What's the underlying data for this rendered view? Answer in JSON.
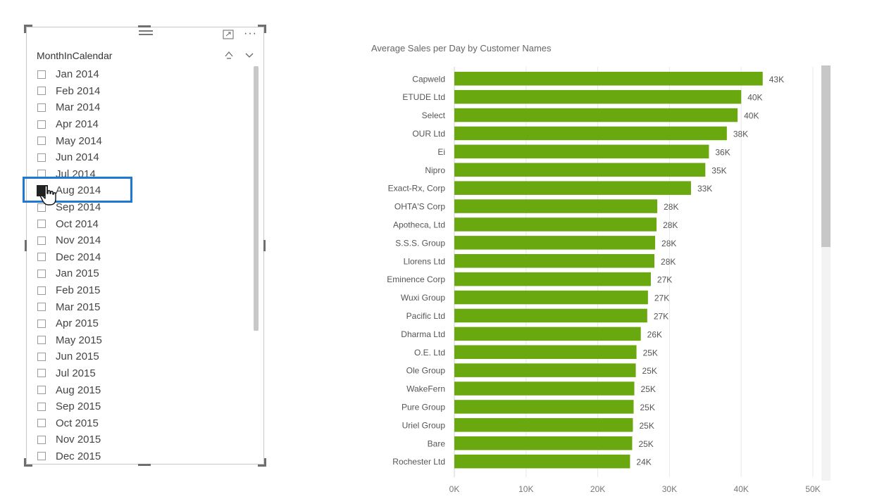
{
  "slicer": {
    "title": "MonthInCalendar",
    "icons": {
      "drag": "drag-handle-icon",
      "focus": "focus-mode-icon",
      "more": "more-options-icon",
      "clear": "eraser-icon",
      "collapse": "chevron-down-icon"
    },
    "more_label": "···",
    "items": [
      {
        "label": "Jan 2014",
        "checked": false
      },
      {
        "label": "Feb 2014",
        "checked": false
      },
      {
        "label": "Mar 2014",
        "checked": false
      },
      {
        "label": "Apr 2014",
        "checked": false
      },
      {
        "label": "May 2014",
        "checked": false
      },
      {
        "label": "Jun 2014",
        "checked": false
      },
      {
        "label": "Jul 2014",
        "checked": false
      },
      {
        "label": "Aug 2014",
        "checked": true
      },
      {
        "label": "Sep 2014",
        "checked": false
      },
      {
        "label": "Oct 2014",
        "checked": false
      },
      {
        "label": "Nov 2014",
        "checked": false
      },
      {
        "label": "Dec 2014",
        "checked": false
      },
      {
        "label": "Jan 2015",
        "checked": false
      },
      {
        "label": "Feb 2015",
        "checked": false
      },
      {
        "label": "Mar 2015",
        "checked": false
      },
      {
        "label": "Apr 2015",
        "checked": false
      },
      {
        "label": "May 2015",
        "checked": false
      },
      {
        "label": "Jun 2015",
        "checked": false
      },
      {
        "label": "Jul 2015",
        "checked": false
      },
      {
        "label": "Aug 2015",
        "checked": false
      },
      {
        "label": "Sep 2015",
        "checked": false
      },
      {
        "label": "Oct 2015",
        "checked": false
      },
      {
        "label": "Nov 2015",
        "checked": false
      },
      {
        "label": "Dec 2015",
        "checked": false
      }
    ]
  },
  "chart_data": {
    "type": "bar",
    "orientation": "horizontal",
    "title": "Average Sales per Day by Customer Names",
    "bar_color": "#6aa810",
    "categories": [
      "Capweld",
      "ETUDE Ltd",
      "Select",
      "OUR Ltd",
      "Ei",
      "Nipro",
      "Exact-Rx, Corp",
      "OHTA'S Corp",
      "Apotheca, Ltd",
      "S.S.S. Group",
      "Llorens Ltd",
      "Eminence Corp",
      "Wuxi Group",
      "Pacific Ltd",
      "Dharma Ltd",
      "O.E. Ltd",
      "Ole Group",
      "WakeFern",
      "Pure Group",
      "Uriel Group",
      "Bare",
      "Rochester Ltd"
    ],
    "values": [
      43000,
      40000,
      39500,
      38000,
      35500,
      35000,
      33000,
      28300,
      28200,
      28000,
      27900,
      27400,
      27000,
      26900,
      26000,
      25400,
      25300,
      25100,
      25000,
      24900,
      24800,
      24500
    ],
    "data_labels": [
      "43K",
      "40K",
      "40K",
      "38K",
      "36K",
      "35K",
      "33K",
      "28K",
      "28K",
      "28K",
      "28K",
      "27K",
      "27K",
      "27K",
      "26K",
      "25K",
      "25K",
      "25K",
      "25K",
      "25K",
      "25K",
      "24K"
    ],
    "xlim": [
      0,
      50000
    ],
    "xticks": [
      "0K",
      "10K",
      "20K",
      "30K",
      "40K",
      "50K"
    ],
    "grid": true
  }
}
